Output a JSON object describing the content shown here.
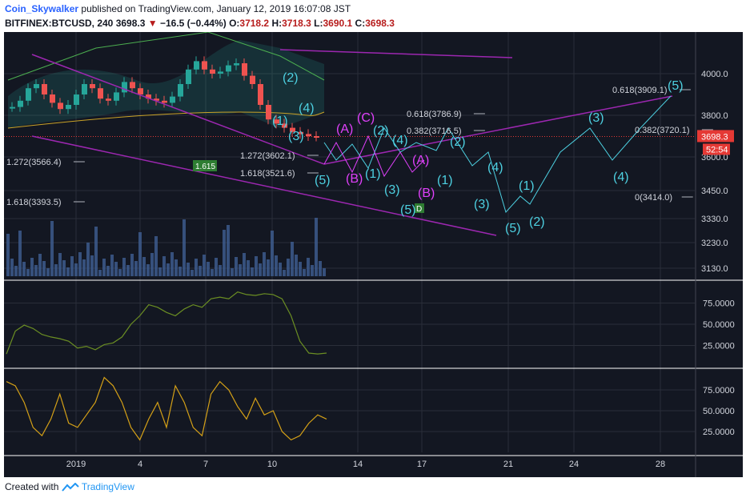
{
  "header": {
    "author": "Coin_Skywalker",
    "published_text": "published on TradingView.com, January 12, 2019 16:07:08 JST",
    "symbol": "BITFINEX:BTCUSD, 240",
    "last": "3698.3",
    "change_arrow": "▼",
    "change": "−16.5 (−0.44%)",
    "o_label": "O:",
    "o_value": "3718.2",
    "h_label": "H:",
    "h_value": "3718.3",
    "l_label": "L:",
    "l_value": "3690.1",
    "c_label": "C:",
    "c_value": "3698.3"
  },
  "footer": {
    "created_with": "Created with",
    "brand": "TradingView"
  },
  "colors": {
    "background": "#131722",
    "grid": "#2a2e39",
    "cyan_waves": "#4dd0e1",
    "magenta_waves": "#e040fb",
    "purple_channel": "#9c27b0",
    "oscillator1": "#6b8e23",
    "oscillator2": "#d4a017",
    "volume": "#3d5a8c",
    "price_badge": "#e53935"
  },
  "chart_data": [
    {
      "type": "candlestick",
      "panel": "price",
      "price_axis_ticks": [
        "4000.0",
        "3800.0",
        "3600.0",
        "3450.0",
        "3330.0",
        "3230.0",
        "3130.0"
      ],
      "price_axis_values": [
        4000,
        3800,
        3600,
        3450,
        3330,
        3230,
        3130
      ],
      "current_price_label": "3698.3",
      "countdown_label": "52:54",
      "x_tick_labels": [
        "2019",
        "4",
        "7",
        "10",
        "14",
        "17",
        "21",
        "24",
        "28"
      ],
      "price_series": [
        3840,
        3870,
        3930,
        3950,
        3900,
        3860,
        3830,
        3850,
        3900,
        3950,
        3930,
        3880,
        3870,
        3910,
        3960,
        3930,
        3900,
        3880,
        3870,
        3860,
        3890,
        3950,
        4020,
        4060,
        4020,
        4000,
        4010,
        4040,
        4050,
        3990,
        3950,
        3850,
        3780,
        3760,
        3740,
        3720,
        3710,
        3700,
        3698
      ],
      "fib_labels": [
        {
          "text": "0.618(3909.1)",
          "value": 3909.1
        },
        {
          "text": "0.382(3720.1)",
          "value": 3720.1
        },
        {
          "text": "0(3414.0)",
          "value": 3414.0
        },
        {
          "text": "0.618(3786.9)",
          "value": 3786.9
        },
        {
          "text": "0.382(3716.5)",
          "value": 3716.5
        },
        {
          "text": "1.272(3602.1)",
          "value": 3602.1
        },
        {
          "text": "1.618(3521.6)",
          "value": 3521.6
        },
        {
          "text": "1.272(3566.4)",
          "value": 3566.4
        },
        {
          "text": "1.618(3393.5)",
          "value": 3393.5
        }
      ],
      "badge_label": "1.615",
      "marker_label": "D",
      "wave_labels_cyan": [
        "(2)",
        "(4)",
        "(1)",
        "(3)",
        "(5)",
        "(2)",
        "(4)",
        "(1)",
        "(3)",
        "(5)",
        "(2)",
        "(1)",
        "(3)",
        "(5)",
        "(4)",
        "(1)",
        "(2)",
        "(3)",
        "(4)",
        "(5)"
      ],
      "wave_labels_magenta": [
        "(A)",
        "(C)",
        "(B)",
        "(A)",
        "(B)"
      ]
    },
    {
      "type": "line",
      "panel": "oscillator-1",
      "y_ticks": [
        "75.0000",
        "50.0000",
        "25.0000"
      ],
      "ylim": [
        0,
        100
      ],
      "values": [
        15,
        42,
        49,
        45,
        38,
        35,
        33,
        30,
        22,
        24,
        20,
        26,
        28,
        35,
        50,
        60,
        73,
        70,
        64,
        60,
        68,
        73,
        70,
        80,
        82,
        80,
        88,
        85,
        84,
        86,
        85,
        80,
        60,
        30,
        16,
        15,
        16
      ]
    },
    {
      "type": "line",
      "panel": "oscillator-2",
      "y_ticks": [
        "75.0000",
        "50.0000",
        "25.0000"
      ],
      "ylim": [
        0,
        100
      ],
      "values": [
        85,
        80,
        60,
        30,
        20,
        40,
        70,
        35,
        30,
        45,
        60,
        90,
        80,
        60,
        30,
        15,
        40,
        60,
        30,
        80,
        60,
        30,
        20,
        70,
        85,
        75,
        55,
        40,
        65,
        45,
        50,
        25,
        15,
        20,
        35,
        45,
        40
      ]
    }
  ]
}
